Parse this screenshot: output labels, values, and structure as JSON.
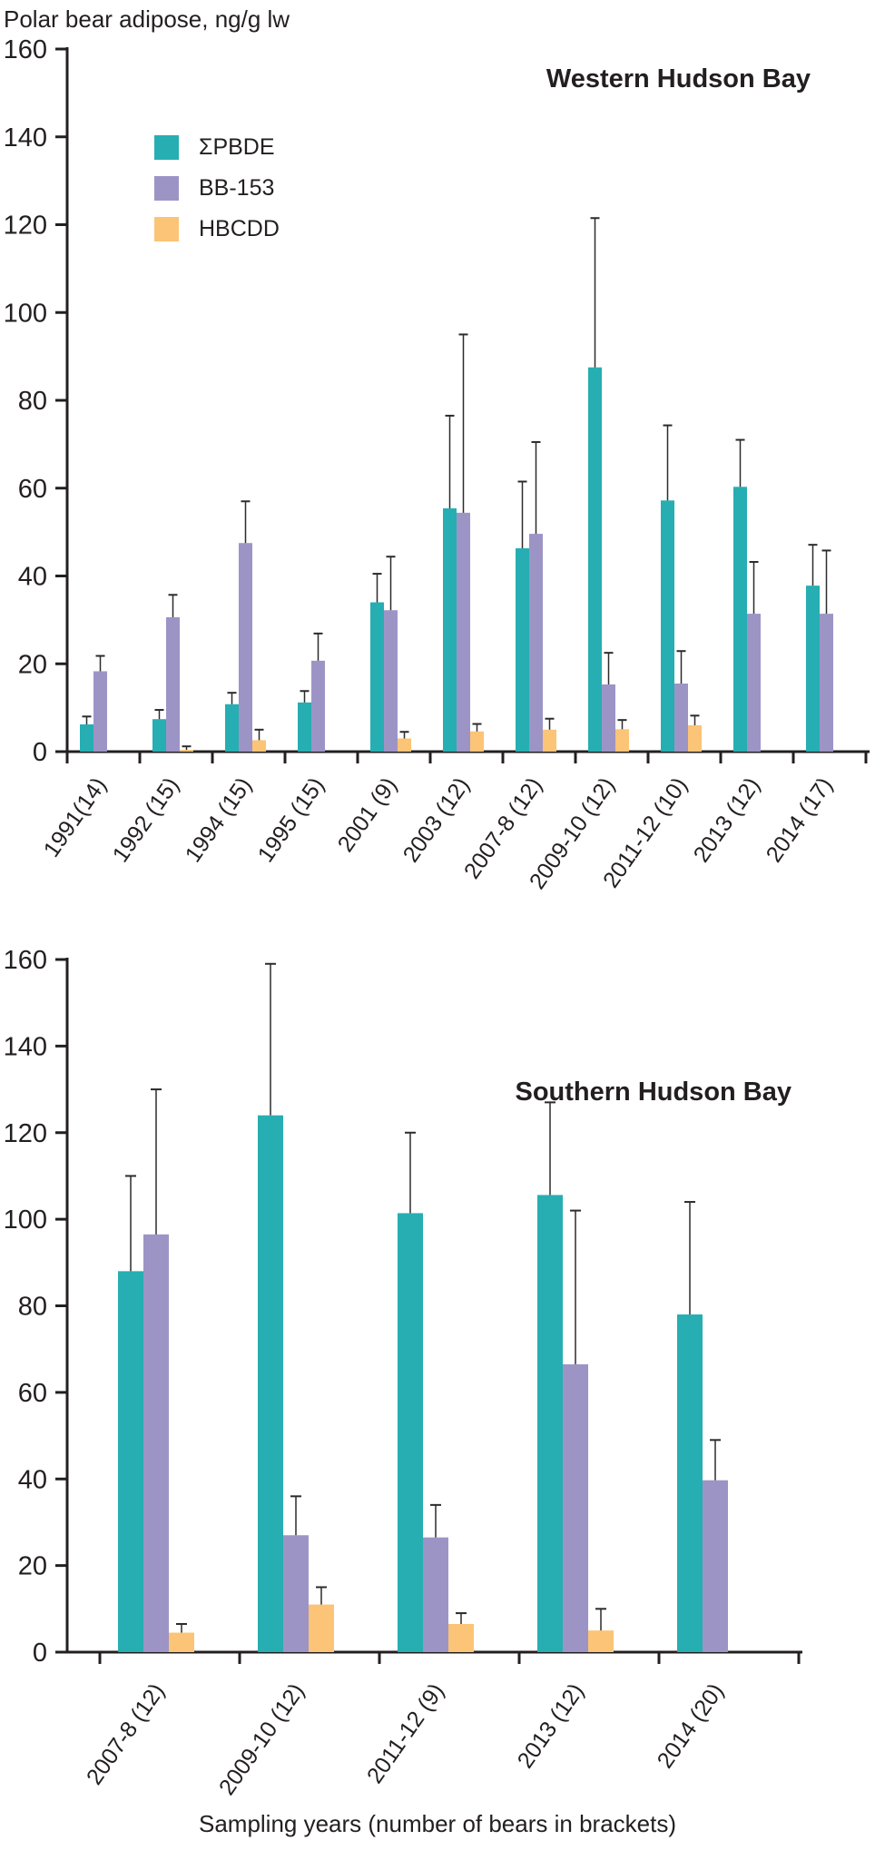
{
  "page": {
    "header": "Polar bear adipose, ng/g lw",
    "caption": "Sampling years (number of bears in brackets)"
  },
  "legend": {
    "entries": [
      {
        "label": "ΣPBDE",
        "color": "#26AEB2"
      },
      {
        "label": "BB-153",
        "color": "#9D94C6"
      },
      {
        "label": "HBCDD",
        "color": "#FBC476"
      }
    ]
  },
  "colors": {
    "axis": "#231f20",
    "error_bar": "#2b2b2b",
    "pbde": "#26AEB2",
    "bb153": "#9D94C6",
    "hbcdd": "#FBC476"
  },
  "chart_data": [
    {
      "type": "bar",
      "title": "Western Hudson Bay",
      "ylabel": "Polar bear adipose, ng/g lw",
      "ylim": [
        0,
        160
      ],
      "ytick_step": 20,
      "grid": false,
      "legend_position": "top-left-inside",
      "error_bars": "upper",
      "categories": [
        "1991(14)",
        "1992 (15)",
        "1994 (15)",
        "1995 (15)",
        "2001 (9)",
        "2003 (12)",
        "2007-8 (12)",
        "2009-10 (12)",
        "2011-12 (10)",
        "2013 (12)",
        "2014 (17)"
      ],
      "series": [
        {
          "name": "ΣPBDE",
          "color": "#26AEB2",
          "values": [
            6.2,
            7.4,
            10.8,
            11.2,
            34.0,
            55.4,
            46.3,
            87.5,
            57.2,
            60.3,
            37.8
          ],
          "error_top": [
            8.0,
            9.5,
            13.4,
            13.8,
            40.5,
            76.5,
            61.5,
            121.5,
            74.3,
            71.0,
            47.1
          ]
        },
        {
          "name": "BB-153",
          "color": "#9D94C6",
          "values": [
            18.3,
            30.6,
            47.5,
            20.7,
            32.2,
            54.4,
            49.6,
            15.3,
            15.5,
            31.4,
            31.4
          ],
          "error_top": [
            21.8,
            35.7,
            57.0,
            26.9,
            44.4,
            95.0,
            70.5,
            22.5,
            22.9,
            43.2,
            45.8
          ]
        },
        {
          "name": "HBCDD",
          "color": "#FBC476",
          "values": [
            null,
            0.4,
            2.6,
            null,
            3.0,
            4.6,
            5.0,
            5.1,
            6.0,
            null,
            null
          ],
          "error_top": [
            null,
            1.2,
            5.0,
            null,
            4.5,
            6.3,
            7.5,
            7.2,
            8.2,
            null,
            null
          ]
        }
      ]
    },
    {
      "type": "bar",
      "title": "Southern Hudson Bay",
      "ylabel": "Polar bear adipose, ng/g lw",
      "ylim": [
        0,
        160
      ],
      "ytick_step": 20,
      "grid": false,
      "legend_position": "none",
      "error_bars": "upper",
      "categories": [
        "2007-8 (12)",
        "2009-10 (12)",
        "2011-12 (9)",
        "2013 (12)",
        "2014 (20)"
      ],
      "series": [
        {
          "name": "ΣPBDE",
          "color": "#26AEB2",
          "values": [
            88.0,
            124.0,
            101.4,
            105.6,
            78.0
          ],
          "error_top": [
            110.0,
            159.0,
            120.0,
            127.0,
            104.0
          ]
        },
        {
          "name": "BB-153",
          "color": "#9D94C6",
          "values": [
            96.5,
            27.0,
            26.5,
            66.5,
            39.7
          ],
          "error_top": [
            130.0,
            36.0,
            34.0,
            102.0,
            49.0
          ]
        },
        {
          "name": "HBCDD",
          "color": "#FBC476",
          "values": [
            4.5,
            11.0,
            6.5,
            5.0,
            null
          ],
          "error_top": [
            6.5,
            15.0,
            9.0,
            10.0,
            null
          ]
        }
      ]
    }
  ]
}
